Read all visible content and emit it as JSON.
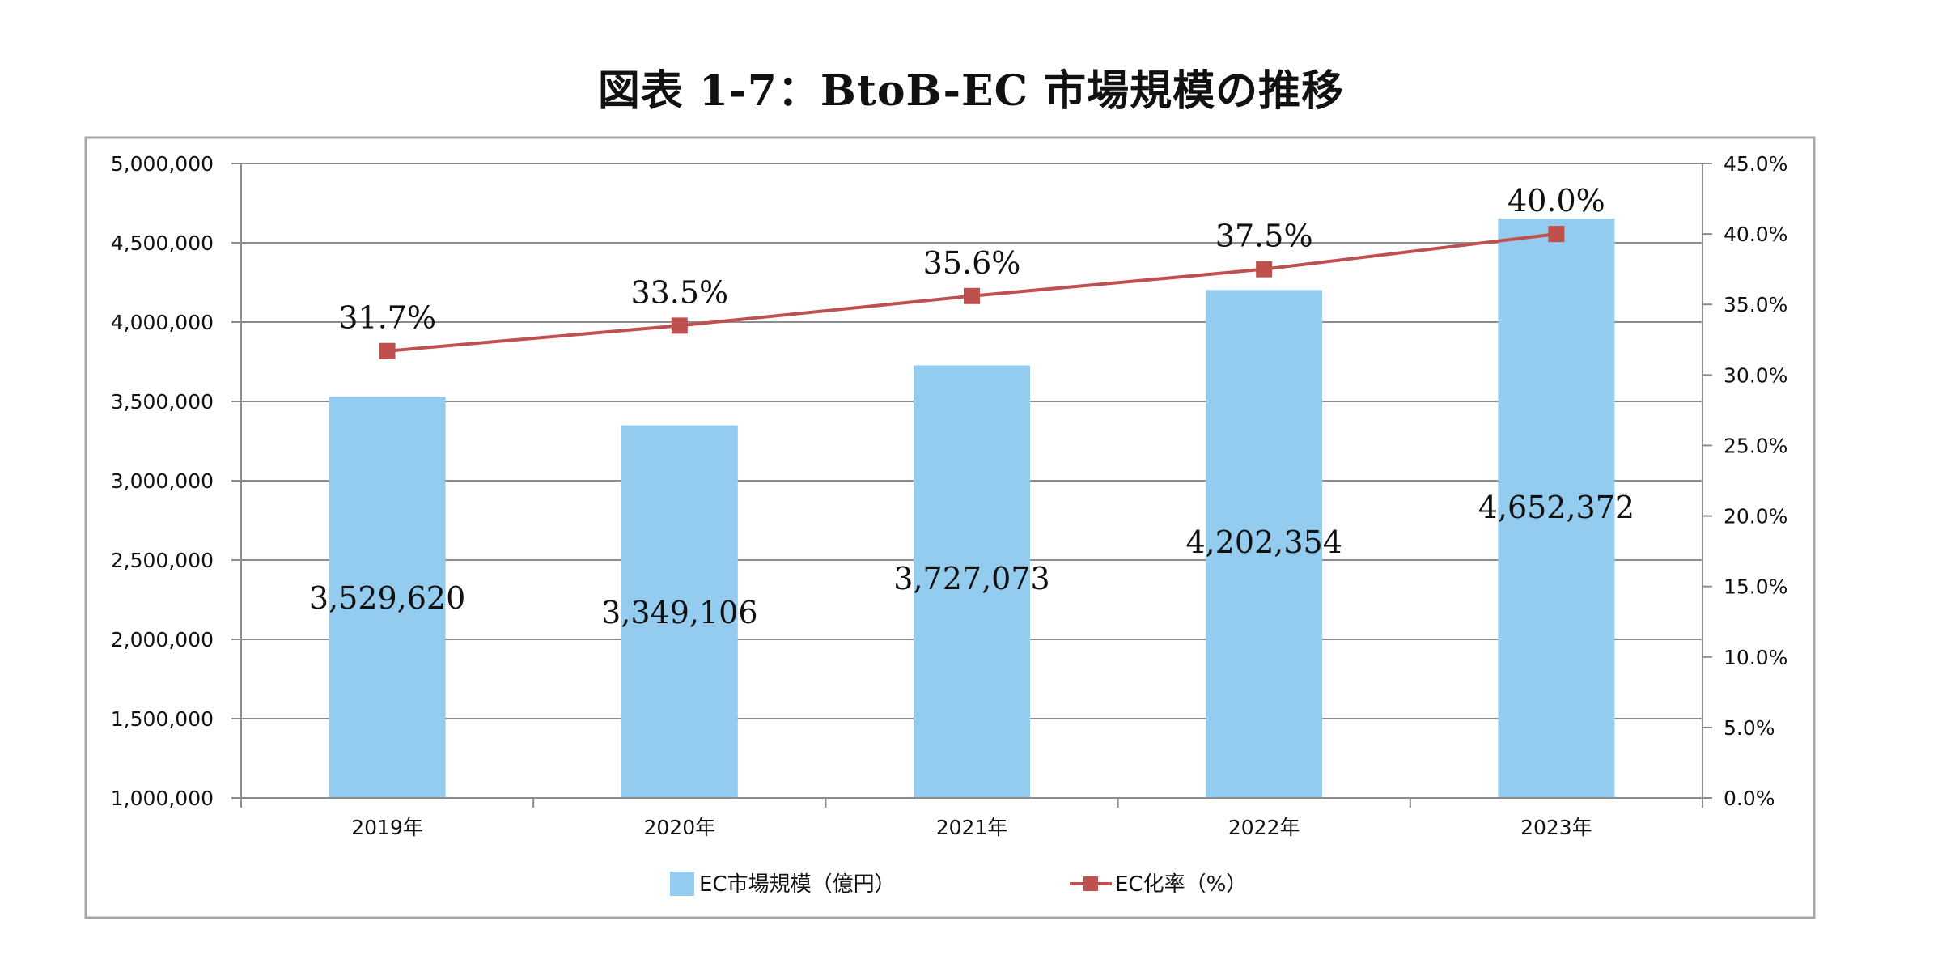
{
  "title": "図表 1-7：BtoB-EC 市場規模の推移",
  "chart_data": {
    "type": "bar",
    "title": "図表 1-7：BtoB-EC 市場規模の推移",
    "categories": [
      "2019年",
      "2020年",
      "2021年",
      "2022年",
      "2023年"
    ],
    "series": [
      {
        "name": "EC市場規模（億円）",
        "type": "bar",
        "axis": "left",
        "color": "#93CCEE",
        "values": [
          3529620,
          3349106,
          3727073,
          4202354,
          4652372
        ],
        "labels": [
          "3,529,620",
          "3,349,106",
          "3,727,073",
          "4,202,354",
          "4,652,372"
        ]
      },
      {
        "name": "EC化率（%）",
        "type": "line",
        "axis": "right",
        "color": "#C0504D",
        "marker": "square",
        "values": [
          31.7,
          33.5,
          35.6,
          37.5,
          40.0
        ],
        "labels": [
          "31.7%",
          "33.5%",
          "35.6%",
          "37.5%",
          "40.0%"
        ]
      }
    ],
    "y_left": {
      "ylim": [
        1000000,
        5000000
      ],
      "ticks": [
        "5,000,000",
        "4,500,000",
        "4,000,000",
        "3,500,000",
        "3,000,000",
        "2,500,000",
        "2,000,000",
        "1,500,000",
        "1,000,000"
      ]
    },
    "y_right": {
      "ylim": [
        0,
        45
      ],
      "ticks": [
        "45.0%",
        "40.0%",
        "35.0%",
        "30.0%",
        "25.0%",
        "20.0%",
        "15.0%",
        "10.0%",
        "5.0%",
        "0.0%"
      ]
    },
    "grid": true,
    "legend": "bottom"
  }
}
